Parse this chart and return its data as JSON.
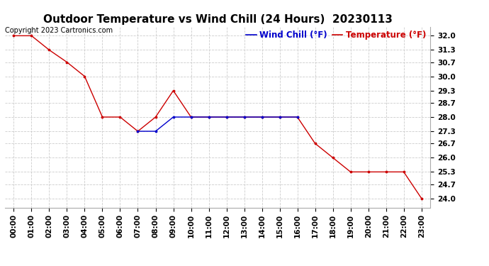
{
  "title": "Outdoor Temperature vs Wind Chill (24 Hours)  20230113",
  "copyright_text": "Copyright 2023 Cartronics.com",
  "legend_wind_chill": "Wind Chill (°F)",
  "legend_temperature": "Temperature (°F)",
  "x_labels": [
    "00:00",
    "01:00",
    "02:00",
    "03:00",
    "04:00",
    "05:00",
    "06:00",
    "07:00",
    "08:00",
    "09:00",
    "10:00",
    "11:00",
    "12:00",
    "13:00",
    "14:00",
    "15:00",
    "16:00",
    "17:00",
    "18:00",
    "19:00",
    "20:00",
    "21:00",
    "22:00",
    "23:00"
  ],
  "temperature_x": [
    0,
    1,
    2,
    3,
    4,
    5,
    6,
    7,
    8,
    9,
    10,
    11,
    12,
    13,
    14,
    15,
    16,
    17,
    18,
    19,
    20,
    21,
    22,
    23
  ],
  "temperature_y": [
    32.0,
    32.0,
    31.3,
    30.7,
    30.0,
    28.0,
    28.0,
    27.3,
    28.0,
    29.3,
    28.0,
    28.0,
    28.0,
    28.0,
    28.0,
    28.0,
    28.0,
    26.7,
    26.0,
    25.3,
    25.3,
    25.3,
    25.3,
    24.0
  ],
  "wind_chill_x": [
    7,
    8,
    9,
    10,
    11,
    12,
    13,
    14,
    15,
    16
  ],
  "wind_chill_y": [
    27.3,
    27.3,
    28.0,
    28.0,
    28.0,
    28.0,
    28.0,
    28.0,
    28.0,
    28.0
  ],
  "temp_color": "#cc0000",
  "wind_chill_color": "#0000cc",
  "background_color": "#ffffff",
  "grid_color": "#cccccc",
  "y_ticks": [
    24.0,
    24.7,
    25.3,
    26.0,
    26.7,
    27.3,
    28.0,
    28.7,
    29.3,
    30.0,
    30.7,
    31.3,
    32.0
  ],
  "ylim": [
    23.55,
    32.45
  ],
  "xlim": [
    -0.5,
    23.5
  ],
  "title_fontsize": 11,
  "tick_fontsize": 7.5,
  "legend_fontsize": 8.5,
  "copyright_fontsize": 7
}
